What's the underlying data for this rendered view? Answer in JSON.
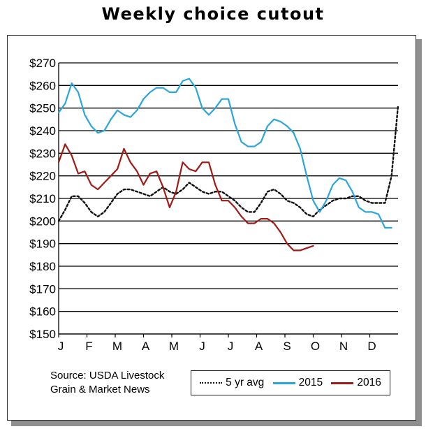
{
  "chart_data": {
    "type": "line",
    "title": "Weekly choice cutout",
    "xlabel": "",
    "ylabel": "",
    "x_ticks": [
      "J",
      "F",
      "M",
      "A",
      "M",
      "J",
      "J",
      "A",
      "S",
      "O",
      "N",
      "D"
    ],
    "y_ticks": [
      "$270",
      "$260",
      "$250",
      "$240",
      "$230",
      "$220",
      "$210",
      "$200",
      "$190",
      "$180",
      "$170",
      "$160",
      "$150"
    ],
    "ylim": [
      150,
      270
    ],
    "xlim": [
      1,
      53
    ],
    "grid": "horizontal",
    "legend_position": "bottom",
    "series": [
      {
        "name": "5 yr avg",
        "color": "#111111",
        "style": "dotted",
        "x": [
          1,
          2,
          3,
          4,
          5,
          6,
          7,
          8,
          9,
          10,
          11,
          12,
          13,
          14,
          15,
          16,
          17,
          18,
          19,
          20,
          21,
          22,
          23,
          24,
          25,
          26,
          27,
          28,
          29,
          30,
          31,
          32,
          33,
          34,
          35,
          36,
          37,
          38,
          39,
          40,
          41,
          42,
          43,
          44,
          45,
          46,
          47,
          48,
          49,
          50,
          51,
          52,
          53
        ],
        "values": [
          200,
          205,
          211,
          211,
          208,
          204,
          202,
          204,
          208,
          212,
          214,
          214,
          213,
          212,
          211,
          213,
          215,
          213,
          212,
          214,
          217,
          215,
          213,
          212,
          213,
          213,
          211,
          209,
          206,
          204,
          204,
          208,
          213,
          214,
          212,
          209,
          208,
          206,
          203,
          202,
          205,
          207,
          209,
          210,
          210,
          211,
          211,
          209,
          208,
          208,
          208,
          220,
          251
        ]
      },
      {
        "name": "2015",
        "color": "#2aa6dd",
        "style": "solid",
        "x": [
          1,
          2,
          3,
          4,
          5,
          6,
          7,
          8,
          9,
          10,
          11,
          12,
          13,
          14,
          15,
          16,
          17,
          18,
          19,
          20,
          21,
          22,
          23,
          24,
          25,
          26,
          27,
          28,
          29,
          30,
          31,
          32,
          33,
          34,
          35,
          36,
          37,
          38,
          39,
          40,
          41,
          42,
          43,
          44,
          45,
          46,
          47,
          48,
          49,
          50,
          51,
          52
        ],
        "values": [
          248,
          252,
          261,
          257,
          247,
          242,
          239,
          240,
          245,
          249,
          247,
          246,
          249,
          254,
          257,
          259,
          259,
          257,
          257,
          262,
          263,
          259,
          250,
          247,
          250,
          254,
          254,
          243,
          235,
          233,
          233,
          235,
          242,
          245,
          244,
          242,
          239,
          232,
          220,
          209,
          204,
          209,
          216,
          219,
          218,
          213,
          206,
          204,
          204,
          203,
          197,
          197
        ]
      },
      {
        "name": "2016",
        "color": "#a11b16",
        "style": "solid",
        "x": [
          1,
          2,
          3,
          4,
          5,
          6,
          7,
          8,
          9,
          10,
          11,
          12,
          13,
          14,
          15,
          16,
          17,
          18,
          19,
          20,
          21,
          22,
          23,
          24,
          25,
          26,
          27,
          28,
          29,
          30,
          31,
          32,
          33,
          34,
          35,
          36,
          37,
          38,
          39,
          40
        ],
        "values": [
          226,
          234,
          229,
          221,
          222,
          216,
          214,
          217,
          220,
          223,
          232,
          226,
          222,
          216,
          221,
          222,
          215,
          206,
          213,
          226,
          223,
          222,
          226,
          226,
          216,
          209,
          209,
          206,
          202,
          199,
          199,
          201,
          201,
          199,
          195,
          190,
          187,
          187,
          188,
          189
        ]
      }
    ]
  },
  "source": {
    "line1": "Source: USDA Livestock",
    "line2": "Grain & Market News"
  }
}
